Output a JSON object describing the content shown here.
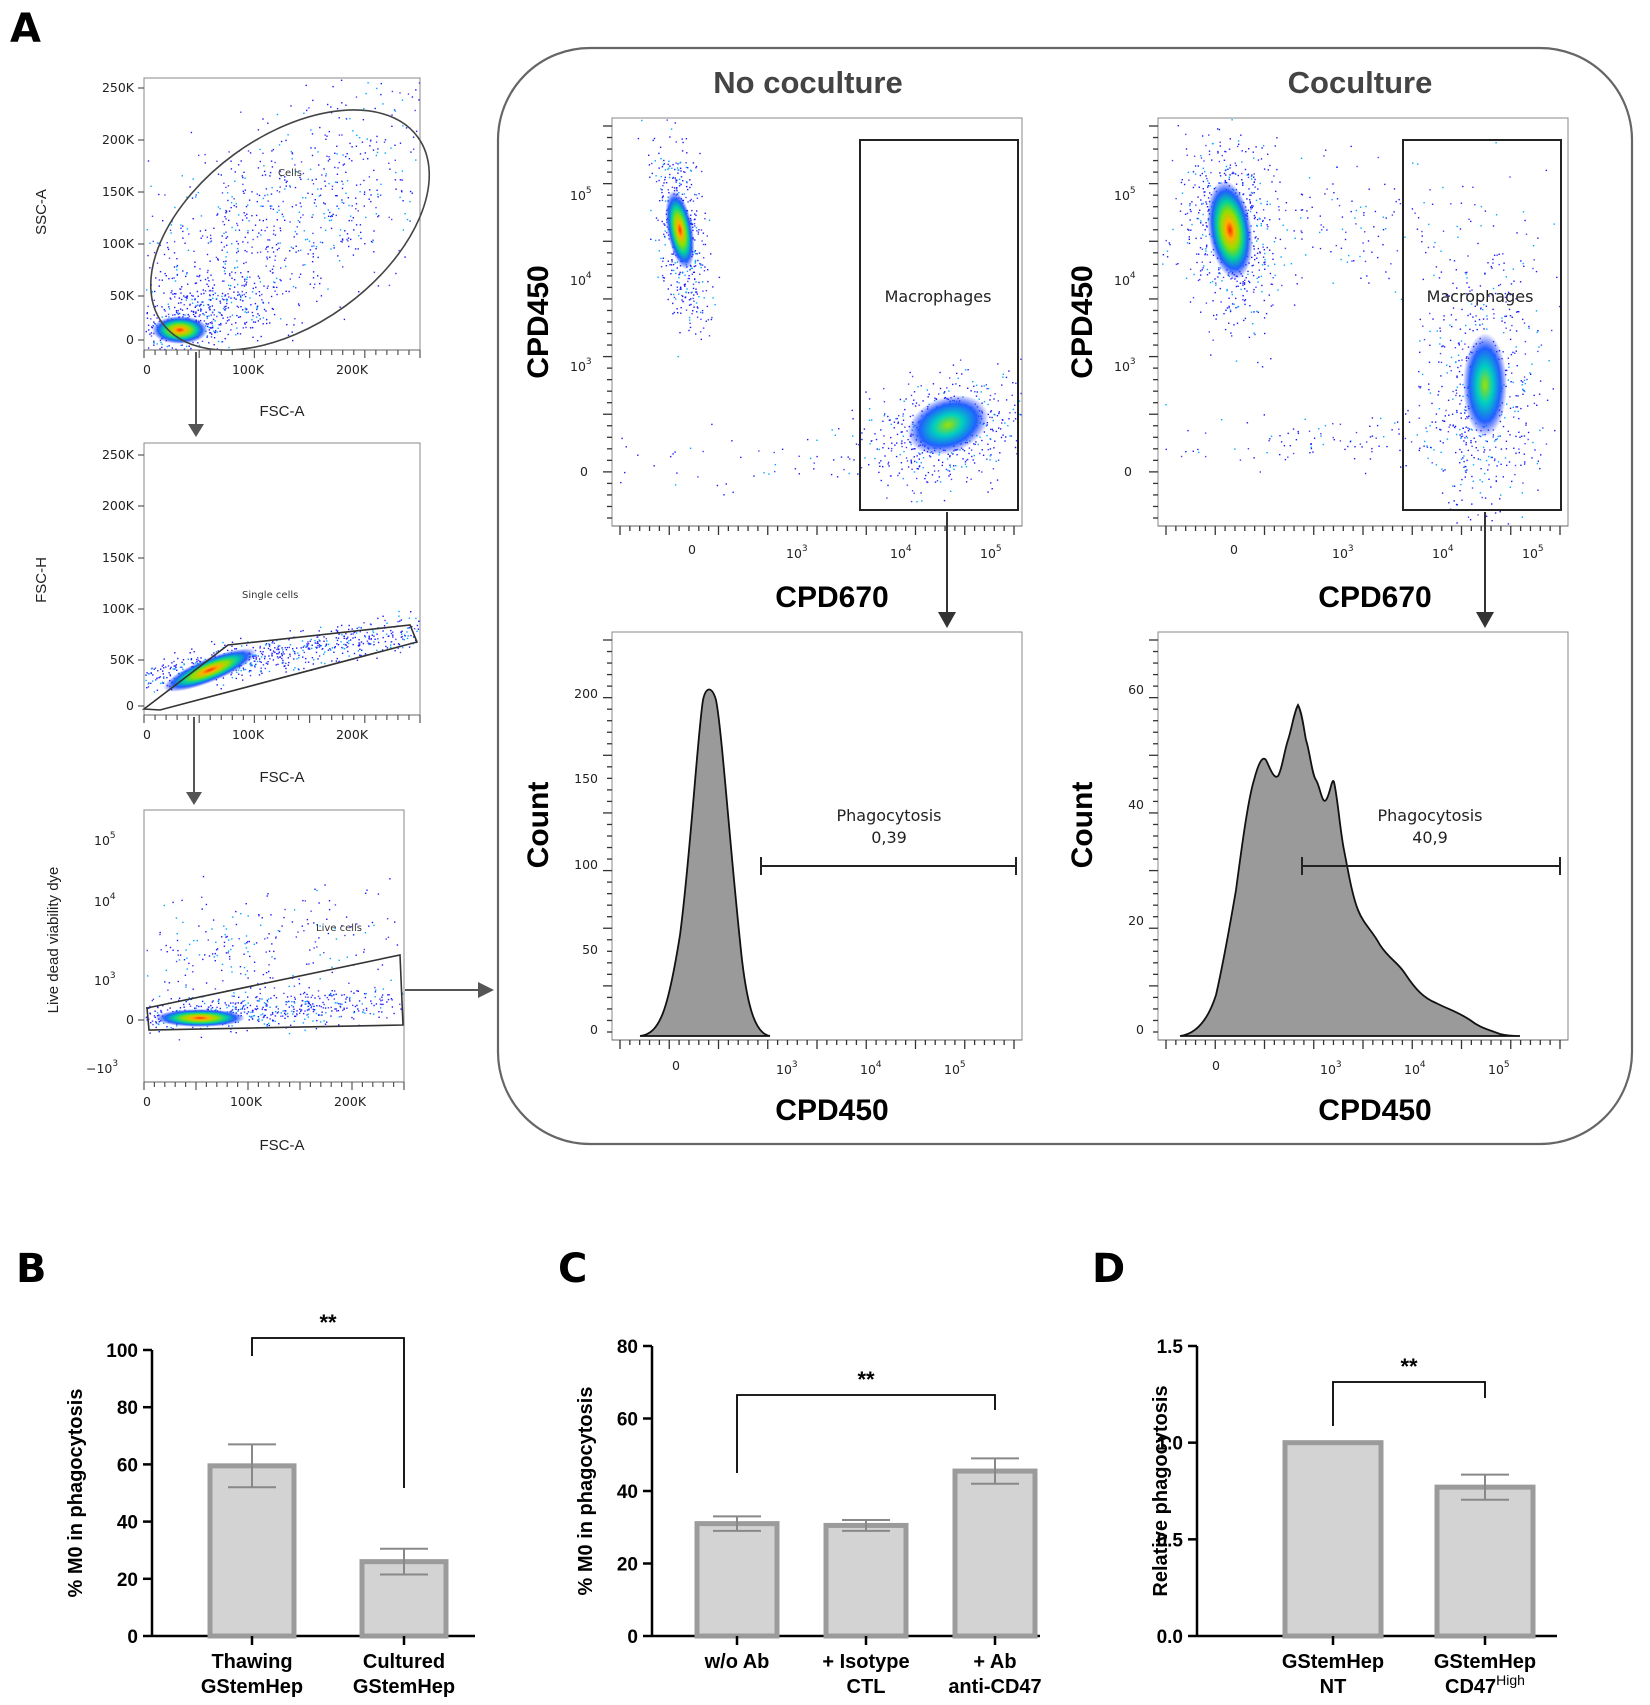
{
  "panel_letters": {
    "A": "A",
    "B": "B",
    "C": "C",
    "D": "D"
  },
  "colors": {
    "bar_fill": "#d3d3d3",
    "bar_edge": "#9b9b9b",
    "hist_fill": "#9a9a9a",
    "frame": "#666666"
  },
  "gating": {
    "g1": {
      "xlabel": "FSC-A",
      "ylabel": "SSC-A",
      "gate": "Cells",
      "xticks": [
        "0",
        "100K",
        "200K"
      ],
      "yticks": [
        "250K",
        "200K",
        "150K",
        "100K",
        "50K",
        "0"
      ]
    },
    "g2": {
      "xlabel": "FSC-A",
      "ylabel": "FSC-H",
      "gate": "Single cells",
      "xticks": [
        "0",
        "100K",
        "200K"
      ],
      "yticks": [
        "250K",
        "200K",
        "150K",
        "100K",
        "50K",
        "0"
      ]
    },
    "g3": {
      "xlabel": "FSC-A",
      "ylabel": "Live dead viability dye",
      "gate": "Live cells",
      "xticks": [
        "0",
        "100K",
        "200K"
      ],
      "yticks": [
        "0"
      ]
    }
  },
  "flow": {
    "col1_title": "No coculture",
    "col2_title": "Coculture",
    "scatter_xlabel": "CPD670",
    "scatter_ylabel": "CPD450",
    "macro_gate": "Macrophages",
    "hist_xlabel": "CPD450",
    "hist_ylabel": "Count",
    "phago_label": "Phagocytosis",
    "phago_no": "0,39",
    "phago_co": "40,9",
    "tick_zero": "0",
    "hist_no_yticks": [
      "0",
      "50",
      "100",
      "150",
      "200"
    ],
    "hist_co_yticks": [
      "0",
      "20",
      "40",
      "60"
    ]
  },
  "chart_data": [
    {
      "panel": "B",
      "type": "bar",
      "categories": [
        "Thawing GStemHep",
        "Cultured GStemHep"
      ],
      "category_lines": [
        [
          "Thawing",
          "GStemHep"
        ],
        [
          "Cultured",
          "GStemHep"
        ]
      ],
      "values": [
        59.5,
        26
      ],
      "errors": [
        7.5,
        4.5
      ],
      "ylabel": "% M0 in phagocytosis",
      "ylim": [
        0,
        100
      ],
      "yticks": [
        "0",
        "20",
        "40",
        "60",
        "80",
        "100"
      ],
      "significance": "**"
    },
    {
      "panel": "C",
      "type": "bar",
      "categories": [
        "w/o Ab",
        "+ Isotype CTL",
        "+ Ab anti-CD47"
      ],
      "category_lines": [
        [
          "w/o Ab"
        ],
        [
          "+ Isotype",
          "CTL"
        ],
        [
          "+ Ab",
          "anti-CD47"
        ]
      ],
      "values": [
        31,
        30.5,
        45.5
      ],
      "errors": [
        2,
        1.5,
        3.5
      ],
      "ylabel": "% M0 in phagocytosis",
      "ylim": [
        0,
        80
      ],
      "yticks": [
        "0",
        "20",
        "40",
        "60",
        "80"
      ],
      "significance": "**"
    },
    {
      "panel": "D",
      "type": "bar",
      "categories": [
        "GStemHep NT",
        "GStemHep CD47High"
      ],
      "category_lines": [
        [
          "GStemHep",
          "NT"
        ],
        [
          "GStemHep",
          "CD47"
        ]
      ],
      "superscript": "High",
      "values": [
        1.0,
        0.77
      ],
      "errors": [
        0,
        0.065
      ],
      "ylabel": "Relative phagocytosis",
      "ylim": [
        0,
        1.5
      ],
      "yticks": [
        "0.0",
        "0.5",
        "1.0",
        "1.5"
      ],
      "significance": "**"
    }
  ]
}
